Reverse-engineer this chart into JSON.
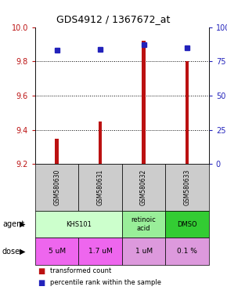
{
  "title": "GDS4912 / 1367672_at",
  "samples": [
    "GSM580630",
    "GSM580631",
    "GSM580632",
    "GSM580633"
  ],
  "bar_values": [
    9.35,
    9.45,
    9.92,
    9.8
  ],
  "bar_base": 9.2,
  "percentile_values": [
    83,
    84,
    87,
    85
  ],
  "ylim": [
    9.2,
    10.0
  ],
  "y_left_ticks": [
    9.2,
    9.4,
    9.6,
    9.8,
    10.0
  ],
  "y_right_ticks": [
    0,
    25,
    50,
    75,
    100
  ],
  "y_right_tick_labels": [
    "0",
    "25",
    "50",
    "75",
    "100%"
  ],
  "dotted_lines": [
    9.4,
    9.6,
    9.8
  ],
  "bar_color": "#BB1111",
  "dot_color": "#2222BB",
  "agent_configs": [
    {
      "cols": [
        0,
        1
      ],
      "text": "KHS101",
      "bg": "#ccffcc"
    },
    {
      "cols": [
        2
      ],
      "text": "retinoic\nacid",
      "bg": "#99ee99"
    },
    {
      "cols": [
        3
      ],
      "text": "DMSO",
      "bg": "#33cc33"
    }
  ],
  "dose_labels": [
    "5 uM",
    "1.7 uM",
    "1 uM",
    "0.1 %"
  ],
  "dose_bg_colors": [
    "#ee66ee",
    "#ee66ee",
    "#dd99dd",
    "#dd99dd"
  ],
  "sample_bg_color": "#cccccc",
  "legend_bar_color": "#BB1111",
  "legend_dot_color": "#2222BB",
  "legend_bar_text": "transformed count",
  "legend_dot_text": "percentile rank within the sample",
  "bar_width": 0.08
}
